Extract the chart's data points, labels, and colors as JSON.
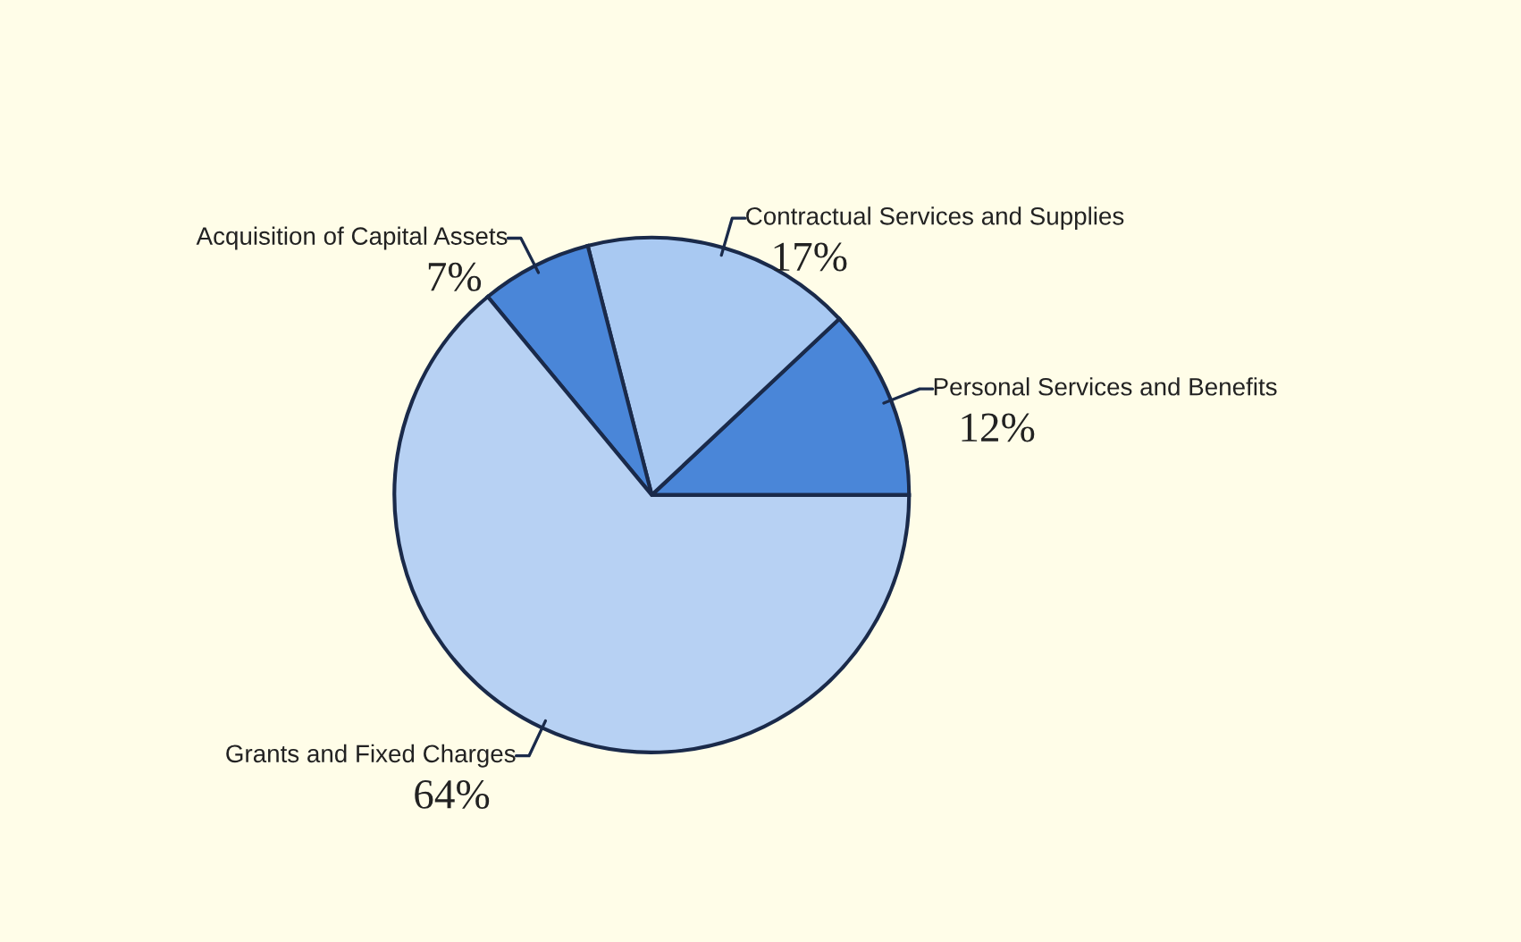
{
  "chart_data": {
    "type": "pie",
    "categories": [
      "Personal Services and Benefits",
      "Contractual Services and Supplies",
      "Acquisition of Capital Assets",
      "Grants and Fixed Charges"
    ],
    "values": [
      12,
      17,
      7,
      64
    ],
    "colors": [
      "#4a86d8",
      "#a9c9f2",
      "#4a86d8",
      "#b7d1f3"
    ],
    "value_labels": [
      "12%",
      "17%",
      "7%",
      "64%"
    ],
    "legend": false
  }
}
